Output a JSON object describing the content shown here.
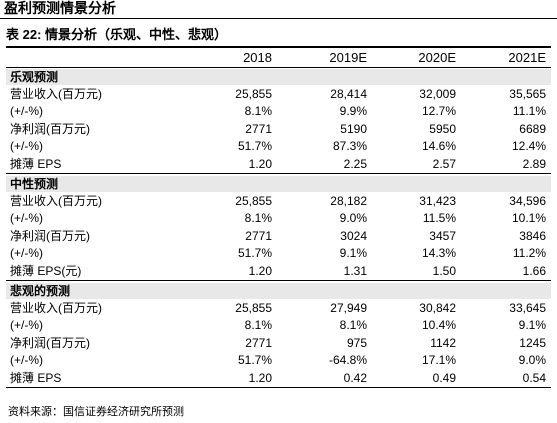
{
  "header": {
    "title": "盈利预测情景分析"
  },
  "table": {
    "caption": "表 22: 情景分析（乐观、中性、悲观）",
    "columns": [
      "2018",
      "2019E",
      "2020E",
      "2021E"
    ],
    "sections": [
      {
        "name": "乐观预测",
        "rows": [
          [
            "营业收入(百万元)",
            "25,855",
            "28,414",
            "32,009",
            "35,565"
          ],
          [
            "(+/-%)",
            "8.1%",
            "9.9%",
            "12.7%",
            "11.1%"
          ],
          [
            "净利润(百万元)",
            "2771",
            "5190",
            "5950",
            "6689"
          ],
          [
            "(+/-%)",
            "51.7%",
            "87.3%",
            "14.6%",
            "12.4%"
          ],
          [
            "摊薄 EPS",
            "1.20",
            "2.25",
            "2.57",
            "2.89"
          ]
        ]
      },
      {
        "name": "中性预测",
        "rows": [
          [
            "营业收入(百万元)",
            "25,855",
            "28,182",
            "31,423",
            "34,596"
          ],
          [
            "(+/-%)",
            "8.1%",
            "9.0%",
            "11.5%",
            "10.1%"
          ],
          [
            "净利润(百万元)",
            "2771",
            "3024",
            "3457",
            "3846"
          ],
          [
            "(+/-%)",
            "51.7%",
            "9.1%",
            "14.3%",
            "11.2%"
          ],
          [
            "摊薄 EPS(元)",
            "1.20",
            "1.31",
            "1.50",
            "1.66"
          ]
        ]
      },
      {
        "name": "悲观的预测",
        "rows": [
          [
            "营业收入(百万元)",
            "25,855",
            "27,949",
            "30,842",
            "33,645"
          ],
          [
            "(+/-%)",
            "8.1%",
            "8.1%",
            "10.4%",
            "9.1%"
          ],
          [
            "净利润(百万元)",
            "2771",
            "975",
            "1142",
            "1245"
          ],
          [
            "(+/-%)",
            "51.7%",
            "-64.8%",
            "17.1%",
            "9.0%"
          ],
          [
            "摊薄 EPS",
            "1.20",
            "0.42",
            "0.49",
            "0.54"
          ]
        ]
      }
    ]
  },
  "source": "资料来源：国信证券经济研究所预测"
}
